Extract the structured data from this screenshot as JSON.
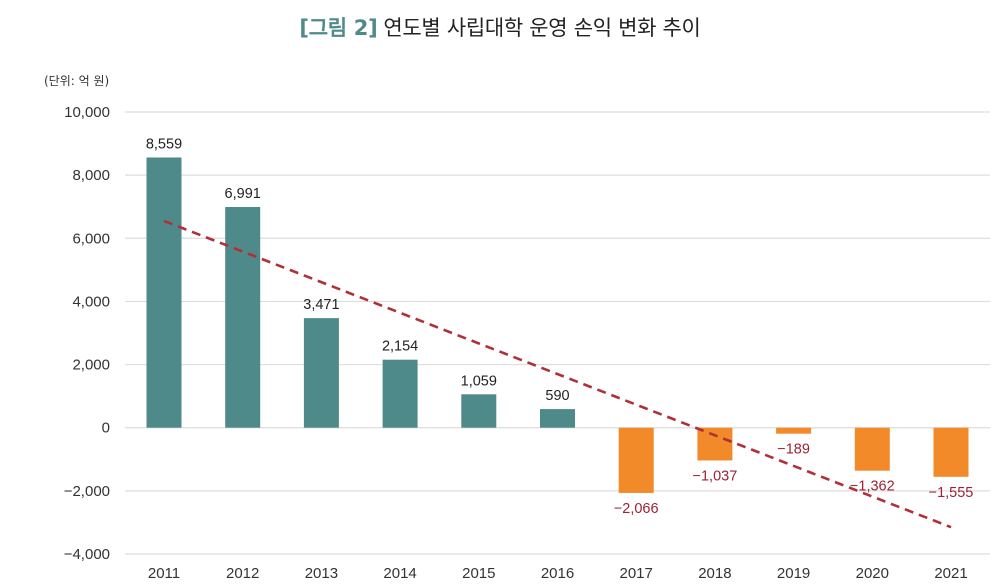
{
  "chart_data": {
    "type": "bar",
    "title_prefix": "[그림 2]",
    "title": "연도별 사립대학 운영 손익 변화 추이",
    "unit_label": "(단위: 억 원)",
    "xlabel": "",
    "ylabel": "",
    "categories": [
      "2011",
      "2012",
      "2013",
      "2014",
      "2015",
      "2016",
      "2017",
      "2018",
      "2019",
      "2020",
      "2021"
    ],
    "values": [
      8559,
      6991,
      3471,
      2154,
      1059,
      590,
      -2066,
      -1037,
      -189,
      -1362,
      -1555
    ],
    "value_labels": [
      "8,559",
      "6,991",
      "3,471",
      "2,154",
      "1,059",
      "590",
      "−2,066",
      "−1,037",
      "−189",
      "−1,362",
      "−1,555"
    ],
    "ylim": [
      -4000,
      10000
    ],
    "yticks": [
      10000,
      8000,
      6000,
      4000,
      2000,
      0,
      -2000,
      -4000
    ],
    "ytick_labels": [
      "10,000",
      "8,000",
      "6,000",
      "4,000",
      "2,000",
      "0",
      "−2,000",
      "−4,000"
    ],
    "grid": true,
    "colors": {
      "positive": "#4f8a8b",
      "negative": "#f28a2a",
      "trend": "#b0303a",
      "grid": "#dddddd",
      "neg_label": "#9b2335"
    },
    "trendline": {
      "type": "linear",
      "style": "dashed",
      "start": {
        "x": "2011",
        "y": 6550
      },
      "end": {
        "x": "2021",
        "y": -3150
      }
    }
  }
}
